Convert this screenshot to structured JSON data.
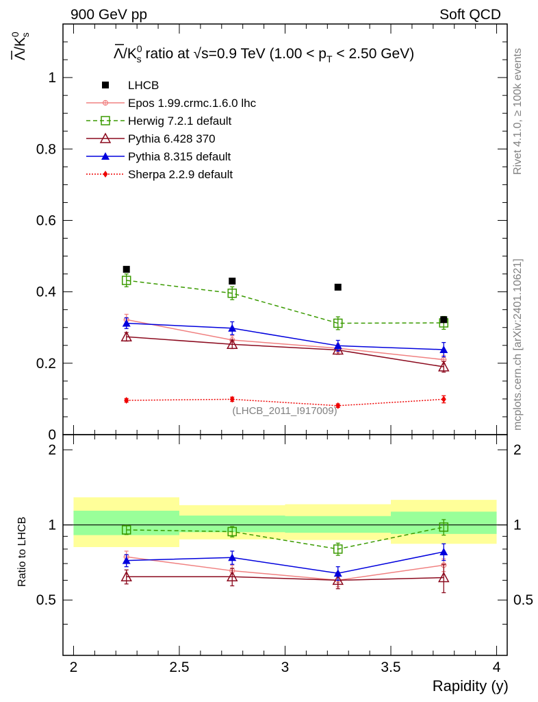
{
  "header": {
    "left": "900 GeV pp",
    "right": "Soft QCD"
  },
  "side": {
    "rivet": "Rivet 4.1.0, ≥ 100k events",
    "mcplots": "mcplots.cern.ch [arXiv:2401.10621]"
  },
  "chart_data": {
    "type": "line",
    "title": "Λ̄/K⁰s ratio at √s=0.9 TeV (1.00 < pT < 2.50 GeV)",
    "title_parts": {
      "lambda": "Λ",
      "k": "/K",
      "k_sup": "0",
      "k_sub": "s",
      "mid": " ratio at ",
      "sqrt": "√",
      "energy": "s=0.9 TeV (1.00 < p",
      "pt_sub": "T",
      "tail": " < 2.50 GeV)"
    },
    "ylabel_parts": {
      "lambda": "Λ",
      "k": "/K",
      "sup": "0",
      "sub": "s"
    },
    "xlabel": "Rapidity (y)",
    "ratio_ylabel": "Ratio to LHCB",
    "analysis_tag": "(LHCB_2011_I917009)",
    "xlim": [
      1.95,
      4.05
    ],
    "ylim": [
      0,
      1.15
    ],
    "ratio_ylim": [
      0.3,
      2.3
    ],
    "x_ticks": [
      "2",
      "2.5",
      "3",
      "3.5",
      "4"
    ],
    "x_tick_values": [
      2,
      2.5,
      3,
      3.5,
      4
    ],
    "y_ticks": [
      "0",
      "0.2",
      "0.4",
      "0.6",
      "0.8",
      "1"
    ],
    "y_tick_values": [
      0,
      0.2,
      0.4,
      0.6,
      0.8,
      1
    ],
    "ratio_ticks": [
      "0.5",
      "1",
      "2"
    ],
    "ratio_tick_values": [
      0.5,
      1,
      2
    ],
    "bins": [
      [
        2.0,
        2.5
      ],
      [
        2.5,
        3.0
      ],
      [
        3.0,
        3.5
      ],
      [
        3.5,
        4.0
      ]
    ],
    "x": [
      2.25,
      2.75,
      3.25,
      3.75
    ],
    "data": {
      "name": "LHCB",
      "values": [
        0.463,
        0.43,
        0.413,
        0.322
      ],
      "band_inner": [
        [
          0.91,
          1.14
        ],
        [
          0.935,
          1.09
        ],
        [
          0.93,
          1.085
        ],
        [
          0.92,
          1.13
        ]
      ],
      "band_outer": [
        [
          0.815,
          1.29
        ],
        [
          0.875,
          1.2
        ],
        [
          0.87,
          1.21
        ],
        [
          0.84,
          1.26
        ]
      ]
    },
    "series": [
      {
        "name": "Epos 1.99.crmc.1.6.0 lhc",
        "color": "#f08080",
        "values": [
          0.322,
          0.265,
          0.242,
          0.21
        ],
        "err": [
          0.015,
          0.012,
          0.012,
          0.012
        ],
        "ratio": [
          0.745,
          0.655,
          0.6,
          0.69
        ],
        "ratio_err": [
          0.04,
          0.035,
          0.035,
          0.04
        ]
      },
      {
        "name": "Herwig 7.2.1 default",
        "color": "#3a9a00",
        "values": [
          0.432,
          0.396,
          0.312,
          0.313
        ],
        "err": [
          0.018,
          0.018,
          0.018,
          0.018
        ],
        "ratio": [
          0.955,
          0.94,
          0.8,
          0.98
        ],
        "ratio_err": [
          0.04,
          0.045,
          0.045,
          0.07
        ]
      },
      {
        "name": "Pythia 6.428 370",
        "color": "#8b0a1e",
        "values": [
          0.274,
          0.253,
          0.237,
          0.19
        ],
        "err": [
          0.012,
          0.012,
          0.012,
          0.015
        ],
        "ratio": [
          0.62,
          0.62,
          0.6,
          0.615
        ],
        "ratio_err": [
          0.04,
          0.05,
          0.045,
          0.08
        ]
      },
      {
        "name": "Pythia 8.315 default",
        "color": "#0000dd",
        "values": [
          0.312,
          0.298,
          0.249,
          0.238
        ],
        "err": [
          0.015,
          0.018,
          0.015,
          0.02
        ],
        "ratio": [
          0.72,
          0.74,
          0.64,
          0.78
        ],
        "ratio_err": [
          0.04,
          0.045,
          0.04,
          0.06
        ]
      },
      {
        "name": "Sherpa 2.2.9 default",
        "color": "#ee0000",
        "values": [
          0.096,
          0.099,
          0.081,
          0.099
        ],
        "err": [
          0.005,
          0.006,
          0.005,
          0.01
        ]
      }
    ]
  }
}
